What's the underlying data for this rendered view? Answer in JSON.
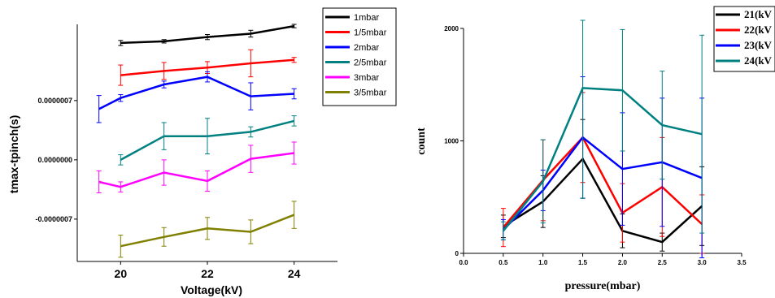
{
  "chart_data": [
    {
      "type": "line",
      "xlabel": "Voltage(kV)",
      "ylabel": "tmax-tpinch(s)",
      "xlim": [
        19,
        25
      ],
      "ylim": [
        -1.2e-06,
        1.6e-06
      ],
      "x_ticks": [
        "20",
        "22",
        "24"
      ],
      "y_ticks": [
        "0.0000007",
        "0.0000000",
        "-0.0000007"
      ],
      "error_bars": true,
      "legend_position": "top-right",
      "grid": false,
      "series": [
        {
          "name": "1mbar",
          "color": "#000000",
          "x": [
            20,
            21,
            22,
            23,
            24
          ],
          "y": [
            1.38e-06,
            1.4e-06,
            1.45e-06,
            1.49e-06,
            1.58e-06
          ],
          "err": [
            3e-08,
            2e-08,
            3e-08,
            4e-08,
            2e-08
          ]
        },
        {
          "name": "1/5mbar",
          "color": "#ff0000",
          "x": [
            20,
            21,
            22,
            23,
            24
          ],
          "y": [
            1e-06,
            1.05e-06,
            1.09e-06,
            1.14e-06,
            1.18e-06
          ],
          "err": [
            1.2e-07,
            1e-07,
            7e-08,
            1.6e-07,
            3e-08
          ]
        },
        {
          "name": "2mbar",
          "color": "#0000ff",
          "x": [
            19.5,
            20,
            21,
            22,
            23,
            24
          ],
          "y": [
            6e-07,
            7.3e-07,
            8.9e-07,
            9.8e-07,
            7.5e-07,
            7.8e-07
          ],
          "err": [
            1.6e-07,
            4e-08,
            4e-08,
            6e-08,
            1.6e-07,
            6e-08
          ]
        },
        {
          "name": "2/5mbar",
          "color": "#008080",
          "x": [
            20,
            21,
            22,
            23,
            24
          ],
          "y": [
            0.0,
            2.8e-07,
            2.8e-07,
            3.3e-07,
            4.6e-07
          ],
          "err": [
            6e-08,
            1.6e-07,
            2.1e-07,
            6e-08,
            6e-08
          ]
        },
        {
          "name": "3mbar",
          "color": "#ff00ff",
          "x": [
            19.5,
            20,
            21,
            22,
            23,
            24
          ],
          "y": [
            -2.6e-07,
            -3.2e-07,
            -1.5e-07,
            -2.5e-07,
            1.2e-08,
            8e-08
          ],
          "err": [
            1.3e-07,
            6e-08,
            1.5e-07,
            1.2e-07,
            1.6e-07,
            1.3e-07
          ]
        },
        {
          "name": "3/5mbar",
          "color": "#808000",
          "x": [
            20,
            21,
            22,
            23,
            24
          ],
          "y": [
            -1.02e-06,
            -9.1e-07,
            -8.1e-07,
            -8.5e-07,
            -6.5e-07
          ],
          "err": [
            1.3e-07,
            1.1e-07,
            1.3e-07,
            1.4e-07,
            1.6e-07
          ]
        }
      ]
    },
    {
      "type": "line",
      "xlabel": "pressure(mbar)",
      "ylabel": "count",
      "xlim": [
        0,
        3.5
      ],
      "ylim": [
        0,
        2000
      ],
      "x_ticks": [
        "0.0",
        "0.5",
        "1.0",
        "1.5",
        "2.0",
        "2.5",
        "3.0",
        "3.5"
      ],
      "y_ticks": [
        "0",
        "1000",
        "2000"
      ],
      "error_bars": true,
      "legend_position": "top-right",
      "grid": false,
      "series": [
        {
          "name": "21(kV",
          "color": "#000000",
          "x": [
            0.5,
            1.0,
            1.5,
            2.0,
            2.5,
            3.0
          ],
          "y": [
            240,
            460,
            840,
            200,
            100,
            420
          ],
          "err": [
            100,
            230,
            350,
            150,
            80,
            350
          ]
        },
        {
          "name": "22(kV",
          "color": "#ff0000",
          "x": [
            0.5,
            1.0,
            1.5,
            2.0,
            2.5,
            3.0
          ],
          "y": [
            230,
            650,
            1030,
            360,
            590,
            260
          ],
          "err": [
            170,
            360,
            400,
            260,
            440,
            260
          ]
        },
        {
          "name": "23(kV",
          "color": "#0000ff",
          "x": [
            0.5,
            1.0,
            1.5,
            2.0,
            2.5,
            3.0
          ],
          "y": [
            210,
            560,
            1030,
            750,
            810,
            670
          ],
          "err": [
            90,
            180,
            540,
            500,
            570,
            710
          ]
        },
        {
          "name": "24(kV",
          "color": "#008080",
          "x": [
            0.5,
            1.0,
            1.5,
            2.0,
            2.5,
            3.0
          ],
          "y": [
            200,
            640,
            1470,
            1450,
            1140,
            1060
          ],
          "err": [
            80,
            370,
            980,
            540,
            480,
            880
          ]
        }
      ]
    }
  ]
}
